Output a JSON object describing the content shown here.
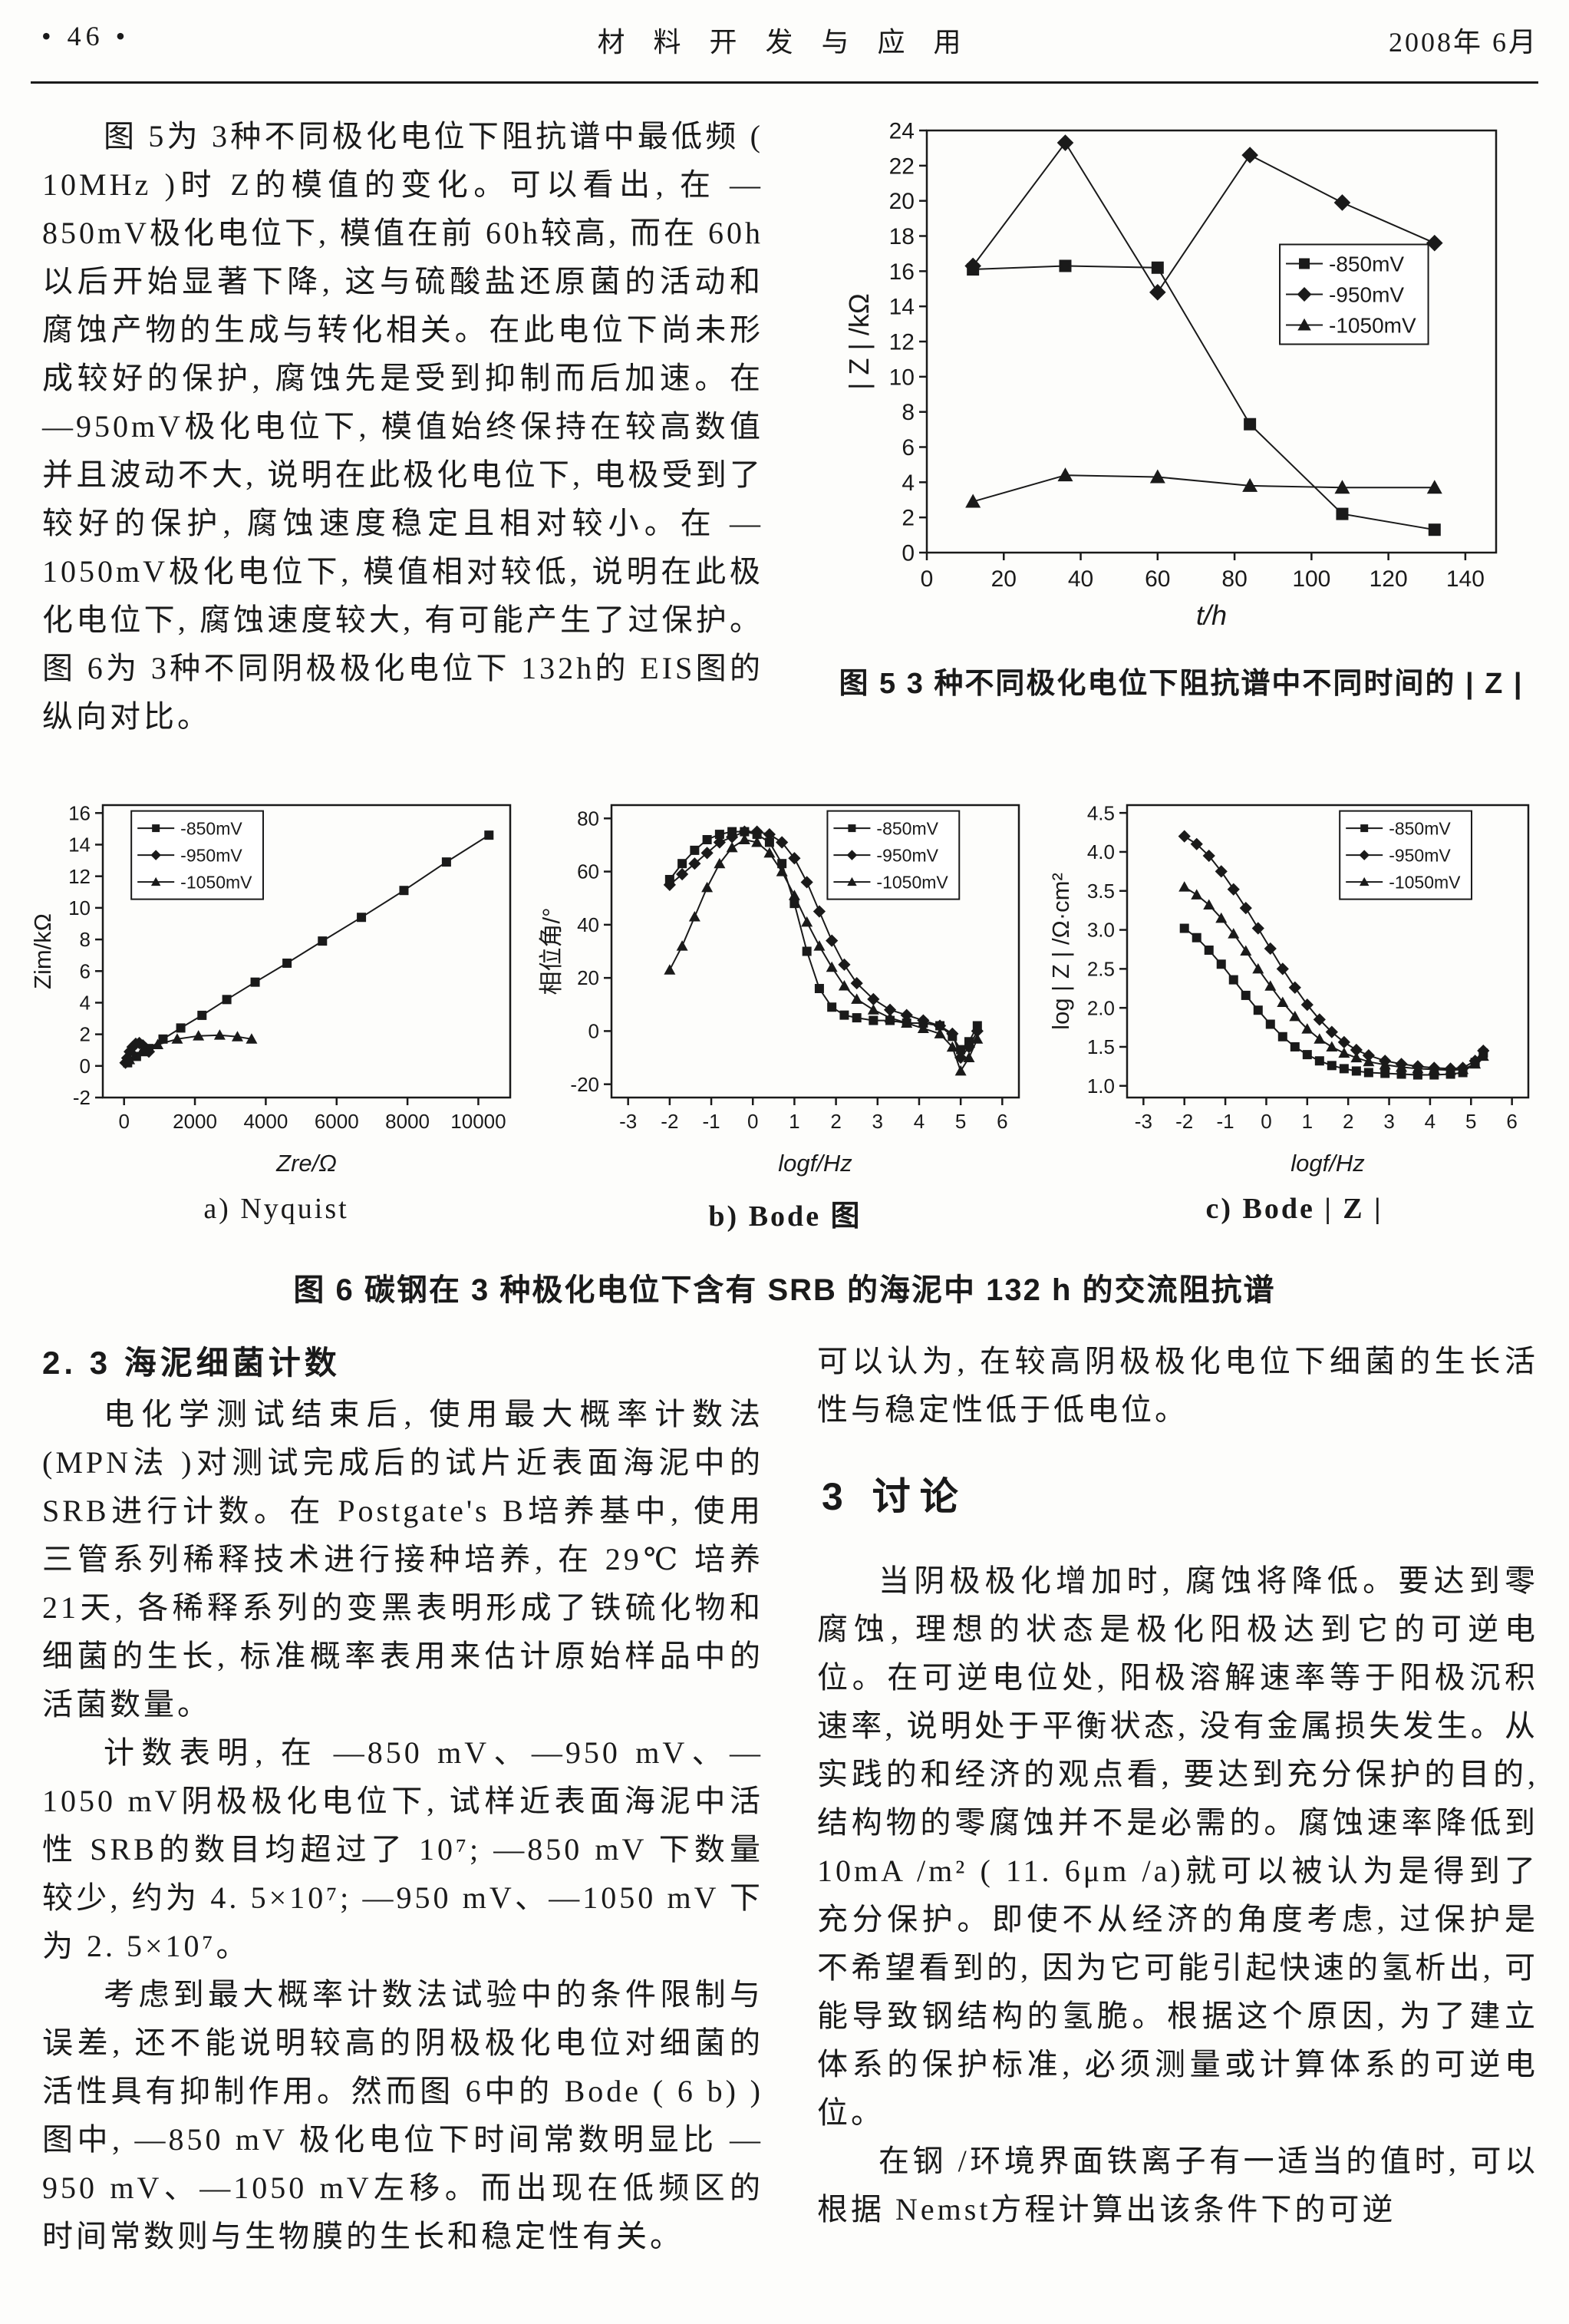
{
  "header": {
    "page_number": "• 46 •",
    "journal": "材 料 开 发 与 应 用",
    "date": "2008年 6月"
  },
  "intro": {
    "text": "图 5为 3种不同极化电位下阻抗谱中最低频 ( 10MHz )时 Z的模值的变化。可以看出, 在 —850mV极化电位下, 模值在前 60h较高, 而在 60h以后开始显著下降, 这与硫酸盐还原菌的活动和腐蚀产物的生成与转化相关。在此电位下尚未形成较好的保护, 腐蚀先是受到抑制而后加速。在 —950mV极化电位下, 模值始终保持在较高数值并且波动不大, 说明在此极化电位下, 电极受到了较好的保护, 腐蚀速度稳定且相对较小。在 —1050mV极化电位下, 模值相对较低, 说明在此极化电位下, 腐蚀速度较大, 有可能产生了过保护。图 6为 3种不同阴极极化电位下 132h的 EIS图的纵向对比。"
  },
  "fig5": {
    "caption": "图 5  3 种不同极化电位下阻抗谱中不同时间的 | Z |"
  },
  "fig6": {
    "caption": "图 6  碳钢在 3 种极化电位下含有 SRB 的海泥中 132 h 的交流阻抗谱",
    "sublabels": [
      "a)  Nyquist",
      "b) Bode 图",
      "c) Bode | Z |"
    ]
  },
  "section23": {
    "heading": "2. 3  海泥细菌计数",
    "para1": "电化学测试结束后, 使用最大概率计数法 (MPN法 )对测试完成后的试片近表面海泥中的 SRB进行计数。在 Postgate's B培养基中, 使用三管系列稀释技术进行接种培养, 在 29℃ 培养 21天, 各稀释系列的变黑表明形成了铁硫化物和细菌的生长, 标准概率表用来估计原始样品中的活菌数量。",
    "para2": "计数表明, 在 —850 mV、—950 mV、—1050 mV阴极极化电位下, 试样近表面海泥中活性 SRB的数目均超过了 10⁷; —850 mV 下数量较少, 约为 4. 5×10⁷; —950 mV、—1050 mV 下为 2. 5×10⁷。",
    "para3": "考虑到最大概率计数法试验中的条件限制与误差, 还不能说明较高的阴极极化电位对细菌的活性具有抑制作用。然而图 6中的 Bode ( 6 b) )图中, —850 mV 极化电位下时间常数明显比 —950 mV、—1050 mV左移。而出现在低频区的时间常数则与生物膜的生长和稳定性有关。"
  },
  "discussion": {
    "lead": "可以认为, 在较高阴极极化电位下细菌的生长活性与稳定性低于低电位。",
    "heading": "3  讨论",
    "para1": "当阴极极化增加时, 腐蚀将降低。要达到零腐蚀, 理想的状态是极化阳极达到它的可逆电位。在可逆电位处, 阳极溶解速率等于阳极沉积速率, 说明处于平衡状态, 没有金属损失发生。从实践的和经济的观点看, 要达到充分保护的目的, 结构物的零腐蚀并不是必需的。腐蚀速率降低到 10mA /m² ( 11. 6μm /a)就可以被认为是得到了充分保护。即使不从经济的角度考虑, 过保护是不希望看到的, 因为它可能引起快速的氢析出, 可能导致钢结构的氢脆。根据这个原因, 为了建立体系的保护标准, 必须测量或计算体系的可逆电位。",
    "para2": "在钢 /环境界面铁离子有一适当的值时, 可以根据 Nemst方程计算出该条件下的可逆"
  },
  "chart_data": [
    {
      "id": "fig5",
      "type": "line",
      "title": "3 种不同极化电位下阻抗谱中不同时间的 |Z|",
      "xlabel": "t/h",
      "ylabel": "| Z | /kΩ",
      "xlim": [
        0,
        148
      ],
      "ylim": [
        0,
        24
      ],
      "xticks": [
        0,
        20,
        40,
        60,
        80,
        100,
        120,
        140
      ],
      "yticks": [
        0,
        2,
        4,
        6,
        8,
        10,
        12,
        14,
        16,
        18,
        20,
        22,
        24
      ],
      "grid": false,
      "legend_pos": {
        "fx": 0.62,
        "fy": 0.27
      },
      "series": [
        {
          "name": "-850mV",
          "marker": "square",
          "points": [
            [
              12,
              16.1
            ],
            [
              36,
              16.3
            ],
            [
              60,
              16.2
            ],
            [
              84,
              7.3
            ],
            [
              108,
              2.2
            ],
            [
              132,
              1.3
            ]
          ]
        },
        {
          "name": "-950mV",
          "marker": "diamond",
          "points": [
            [
              12,
              16.3
            ],
            [
              36,
              23.3
            ],
            [
              60,
              14.8
            ],
            [
              84,
              22.6
            ],
            [
              108,
              19.9
            ],
            [
              132,
              17.6
            ]
          ]
        },
        {
          "name": "-1050mV",
          "marker": "triangle",
          "points": [
            [
              12,
              2.9
            ],
            [
              36,
              4.4
            ],
            [
              60,
              4.3
            ],
            [
              84,
              3.8
            ],
            [
              108,
              3.7
            ],
            [
              132,
              3.7
            ]
          ]
        }
      ]
    },
    {
      "id": "fig6a",
      "type": "line",
      "title": "Nyquist",
      "xlabel": "Zre/Ω",
      "ylabel": "Zim/kΩ",
      "xlim": [
        -600,
        10900
      ],
      "ylim": [
        -2,
        16.5
      ],
      "xticks": [
        0,
        2000,
        4000,
        6000,
        8000,
        10000
      ],
      "yticks": [
        -2,
        0,
        2,
        4,
        6,
        8,
        10,
        12,
        14,
        16
      ],
      "grid": false,
      "legend_pos": {
        "fx": 0.07,
        "fy": 0.02
      },
      "series": [
        {
          "name": "-850mV",
          "marker": "square",
          "points": [
            [
              100,
              0.2
            ],
            [
              350,
              0.6
            ],
            [
              700,
              1.1
            ],
            [
              1100,
              1.7
            ],
            [
              1600,
              2.4
            ],
            [
              2200,
              3.2
            ],
            [
              2900,
              4.2
            ],
            [
              3700,
              5.3
            ],
            [
              4600,
              6.5
            ],
            [
              5600,
              7.9
            ],
            [
              6700,
              9.4
            ],
            [
              7900,
              11.1
            ],
            [
              9100,
              12.9
            ],
            [
              10300,
              14.6
            ]
          ]
        },
        {
          "name": "-950mV",
          "marker": "diamond",
          "points": [
            [
              40,
              0.2
            ],
            [
              90,
              0.5
            ],
            [
              160,
              0.9
            ],
            [
              240,
              1.2
            ],
            [
              330,
              1.4
            ],
            [
              430,
              1.45
            ],
            [
              530,
              1.3
            ],
            [
              620,
              1.1
            ],
            [
              700,
              0.9
            ]
          ]
        },
        {
          "name": "-1050mV",
          "marker": "triangle",
          "points": [
            [
              150,
              0.4
            ],
            [
              500,
              0.9
            ],
            [
              950,
              1.35
            ],
            [
              1500,
              1.7
            ],
            [
              2100,
              1.9
            ],
            [
              2700,
              1.95
            ],
            [
              3200,
              1.85
            ],
            [
              3600,
              1.7
            ]
          ]
        }
      ]
    },
    {
      "id": "fig6b",
      "type": "line",
      "title": "Bode 图",
      "xlabel": "logf/Hz",
      "ylabel": "相位角/°",
      "xlim": [
        -3.4,
        6.4
      ],
      "ylim": [
        -25,
        85
      ],
      "xticks": [
        -3,
        -2,
        -1,
        0,
        1,
        2,
        3,
        4,
        5,
        6
      ],
      "yticks": [
        -20,
        0,
        20,
        40,
        60,
        80
      ],
      "grid": false,
      "legend_pos": {
        "fx": 0.53,
        "fy": 0.02
      },
      "series": [
        {
          "name": "-850mV",
          "marker": "square",
          "points": [
            [
              -2,
              57
            ],
            [
              -1.7,
              63
            ],
            [
              -1.4,
              68
            ],
            [
              -1.1,
              72
            ],
            [
              -0.8,
              74
            ],
            [
              -0.5,
              75
            ],
            [
              -0.2,
              75
            ],
            [
              0.1,
              74
            ],
            [
              0.4,
              71
            ],
            [
              0.7,
              63
            ],
            [
              1,
              48
            ],
            [
              1.3,
              30
            ],
            [
              1.6,
              16
            ],
            [
              1.9,
              9
            ],
            [
              2.2,
              6
            ],
            [
              2.5,
              5
            ],
            [
              2.9,
              4
            ],
            [
              3.3,
              4
            ],
            [
              3.7,
              3
            ],
            [
              4.1,
              3
            ],
            [
              4.5,
              2
            ],
            [
              4.8,
              -2
            ],
            [
              5,
              -7
            ],
            [
              5.2,
              -4
            ],
            [
              5.4,
              2
            ]
          ]
        },
        {
          "name": "-950mV",
          "marker": "diamond",
          "points": [
            [
              -2,
              55
            ],
            [
              -1.7,
              59
            ],
            [
              -1.4,
              63
            ],
            [
              -1.1,
              67
            ],
            [
              -0.8,
              71
            ],
            [
              -0.5,
              73
            ],
            [
              -0.2,
              75
            ],
            [
              0.1,
              75
            ],
            [
              0.4,
              74
            ],
            [
              0.7,
              71
            ],
            [
              1,
              65
            ],
            [
              1.3,
              56
            ],
            [
              1.6,
              45
            ],
            [
              1.9,
              34
            ],
            [
              2.2,
              25
            ],
            [
              2.5,
              18
            ],
            [
              2.9,
              12
            ],
            [
              3.3,
              8
            ],
            [
              3.7,
              6
            ],
            [
              4.1,
              4
            ],
            [
              4.5,
              2
            ],
            [
              4.8,
              -1
            ],
            [
              5,
              -10
            ],
            [
              5.2,
              -6
            ],
            [
              5.4,
              0
            ]
          ]
        },
        {
          "name": "-1050mV",
          "marker": "triangle",
          "points": [
            [
              -2,
              23
            ],
            [
              -1.7,
              32
            ],
            [
              -1.4,
              43
            ],
            [
              -1.1,
              54
            ],
            [
              -0.8,
              63
            ],
            [
              -0.5,
              69
            ],
            [
              -0.2,
              72
            ],
            [
              0.1,
              71
            ],
            [
              0.4,
              67
            ],
            [
              0.7,
              60
            ],
            [
              1,
              51
            ],
            [
              1.3,
              41
            ],
            [
              1.6,
              32
            ],
            [
              1.9,
              24
            ],
            [
              2.2,
              17
            ],
            [
              2.5,
              12
            ],
            [
              2.9,
              8
            ],
            [
              3.3,
              5
            ],
            [
              3.7,
              3
            ],
            [
              4.1,
              1
            ],
            [
              4.5,
              -1
            ],
            [
              4.8,
              -6
            ],
            [
              5,
              -15
            ],
            [
              5.2,
              -10
            ],
            [
              5.4,
              -3
            ]
          ]
        }
      ]
    },
    {
      "id": "fig6c",
      "type": "line",
      "title": "Bode | Z |",
      "xlabel": "logf/Hz",
      "ylabel": "log | Z | /Ω·cm²",
      "xlim": [
        -3.4,
        6.4
      ],
      "ylim": [
        0.85,
        4.6
      ],
      "xticks": [
        -3,
        -2,
        -1,
        0,
        1,
        2,
        3,
        4,
        5,
        6
      ],
      "yticks": [
        1.0,
        1.5,
        2.0,
        2.5,
        3.0,
        3.5,
        4.0,
        4.5
      ],
      "ytick_labels": [
        "1.0",
        "1.5",
        "2.0",
        "2.5",
        "3.0",
        "3.5",
        "4.0",
        "4.5"
      ],
      "grid": false,
      "legend_pos": {
        "fx": 0.53,
        "fy": 0.02
      },
      "series": [
        {
          "name": "-850mV",
          "marker": "square",
          "points": [
            [
              -2,
              3.02
            ],
            [
              -1.7,
              2.9
            ],
            [
              -1.4,
              2.74
            ],
            [
              -1.1,
              2.56
            ],
            [
              -0.8,
              2.36
            ],
            [
              -0.5,
              2.16
            ],
            [
              -0.2,
              1.97
            ],
            [
              0.1,
              1.79
            ],
            [
              0.4,
              1.63
            ],
            [
              0.7,
              1.5
            ],
            [
              1,
              1.4
            ],
            [
              1.3,
              1.32
            ],
            [
              1.6,
              1.26
            ],
            [
              1.9,
              1.22
            ],
            [
              2.2,
              1.19
            ],
            [
              2.5,
              1.17
            ],
            [
              2.9,
              1.16
            ],
            [
              3.3,
              1.15
            ],
            [
              3.7,
              1.14
            ],
            [
              4.1,
              1.14
            ],
            [
              4.5,
              1.15
            ],
            [
              4.8,
              1.17
            ],
            [
              5.1,
              1.3
            ],
            [
              5.3,
              1.42
            ]
          ]
        },
        {
          "name": "-950mV",
          "marker": "diamond",
          "points": [
            [
              -2,
              4.2
            ],
            [
              -1.7,
              4.1
            ],
            [
              -1.4,
              3.95
            ],
            [
              -1.1,
              3.75
            ],
            [
              -0.8,
              3.52
            ],
            [
              -0.5,
              3.28
            ],
            [
              -0.2,
              3.02
            ],
            [
              0.1,
              2.76
            ],
            [
              0.4,
              2.5
            ],
            [
              0.7,
              2.26
            ],
            [
              1,
              2.04
            ],
            [
              1.3,
              1.85
            ],
            [
              1.6,
              1.69
            ],
            [
              1.9,
              1.56
            ],
            [
              2.2,
              1.46
            ],
            [
              2.5,
              1.39
            ],
            [
              2.9,
              1.32
            ],
            [
              3.3,
              1.28
            ],
            [
              3.7,
              1.25
            ],
            [
              4.1,
              1.23
            ],
            [
              4.5,
              1.22
            ],
            [
              4.8,
              1.23
            ],
            [
              5.1,
              1.32
            ],
            [
              5.3,
              1.45
            ]
          ]
        },
        {
          "name": "-1050mV",
          "marker": "triangle",
          "points": [
            [
              -2,
              3.55
            ],
            [
              -1.7,
              3.45
            ],
            [
              -1.4,
              3.32
            ],
            [
              -1.1,
              3.15
            ],
            [
              -0.8,
              2.95
            ],
            [
              -0.5,
              2.73
            ],
            [
              -0.2,
              2.5
            ],
            [
              0.1,
              2.28
            ],
            [
              0.4,
              2.07
            ],
            [
              0.7,
              1.89
            ],
            [
              1,
              1.73
            ],
            [
              1.3,
              1.6
            ],
            [
              1.6,
              1.5
            ],
            [
              1.9,
              1.42
            ],
            [
              2.2,
              1.36
            ],
            [
              2.5,
              1.31
            ],
            [
              2.9,
              1.27
            ],
            [
              3.3,
              1.24
            ],
            [
              3.7,
              1.22
            ],
            [
              4.1,
              1.21
            ],
            [
              4.5,
              1.2
            ],
            [
              4.8,
              1.21
            ],
            [
              5.1,
              1.28
            ],
            [
              5.3,
              1.38
            ]
          ]
        }
      ]
    }
  ]
}
